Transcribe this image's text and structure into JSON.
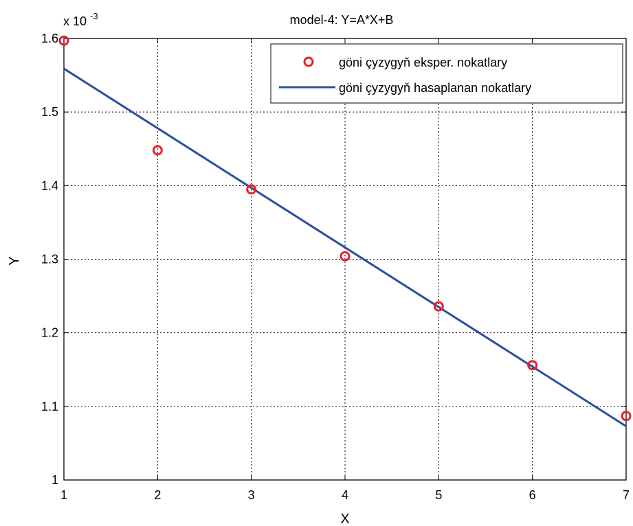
{
  "chart_data": {
    "type": "line",
    "title": "model-4: Y=A*X+B",
    "xlabel": "X",
    "ylabel": "Y",
    "xlim": [
      1,
      7
    ],
    "ylim": [
      1,
      1.6
    ],
    "y_multiplier_label": "x 10",
    "y_multiplier_exponent": "-3",
    "x_ticks": [
      "1",
      "2",
      "3",
      "4",
      "5",
      "6",
      "7"
    ],
    "y_ticks": [
      "1",
      "1.1",
      "1.2",
      "1.3",
      "1.4",
      "1.5",
      "1.6"
    ],
    "grid": true,
    "legend_position": "top-right",
    "series": [
      {
        "name": "göni çyzygyň eksper. nokatlary",
        "style": "markers",
        "marker": "circle",
        "color": "#e8202a",
        "x": [
          1,
          2,
          3,
          4,
          5,
          6,
          7
        ],
        "y": [
          1.597,
          1.448,
          1.395,
          1.304,
          1.236,
          1.156,
          1.087
        ]
      },
      {
        "name": "göni çyzygyň hasaplanan nokatlary",
        "style": "line",
        "color": "#2a4f9e",
        "x": [
          1,
          7
        ],
        "y": [
          1.559,
          1.073
        ]
      }
    ]
  }
}
